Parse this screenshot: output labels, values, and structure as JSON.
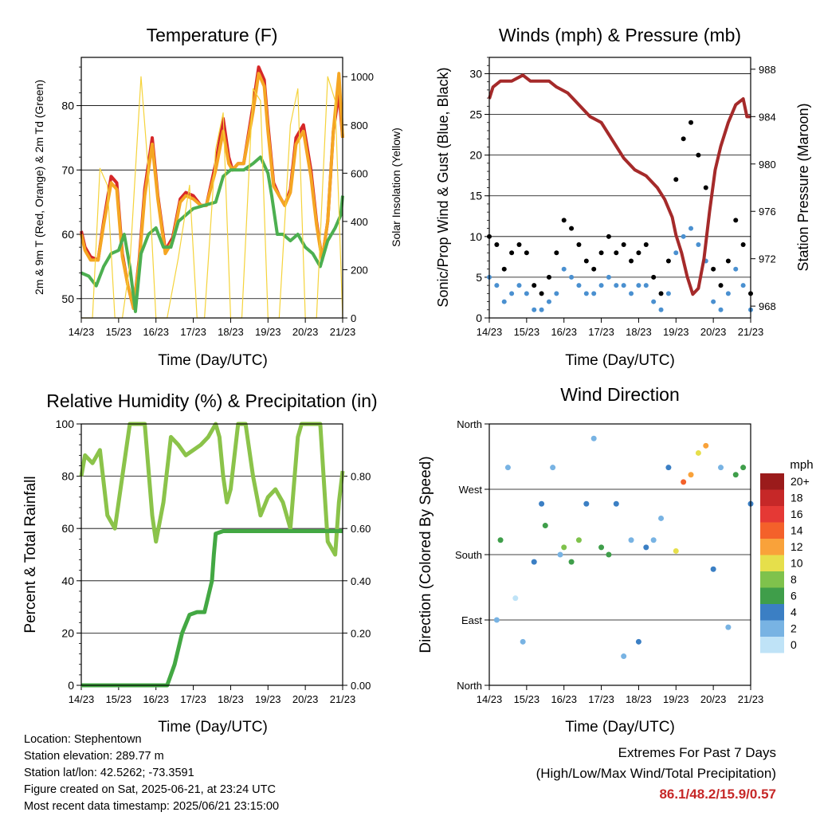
{
  "charts": [
    {
      "title": "Temperature (F)",
      "xlabel": "Time (Day/UTC)",
      "ylabel_left": "2m & 9m T (Red, Orange) & 2m Td (Green)",
      "ylabel_right": "Solar Insolation (Yellow)"
    },
    {
      "title": "Winds (mph) & Pressure (mb)",
      "xlabel": "Time (Day/UTC)",
      "ylabel_left": "Sonic/Prop Wind & Gust (Blue, Black)",
      "ylabel_right": "Station Pressure (Maroon)"
    },
    {
      "title": "Relative Humidity (%) & Precipitation (in)",
      "xlabel": "Time (Day/UTC)",
      "ylabel_left": "Percent & Total Rainfall"
    },
    {
      "title": "Wind Direction",
      "xlabel": "Time (Day/UTC)",
      "ylabel_left": "Direction (Colored By Speed)",
      "legend_title": "mph"
    }
  ],
  "chart_data": [
    {
      "type": "line",
      "x_ticks": [
        "14/23",
        "15/23",
        "16/23",
        "17/23",
        "18/23",
        "19/23",
        "20/23",
        "21/23"
      ],
      "ylim": [
        47,
        87.5
      ],
      "y_ticks": [
        50,
        60,
        70,
        80
      ],
      "y2lim": [
        0,
        1080
      ],
      "y2_ticks": [
        0,
        200,
        400,
        600,
        800,
        1000
      ],
      "series": [
        {
          "color": "#d62728",
          "x": [
            0,
            0.1,
            0.25,
            0.45,
            0.6,
            0.8,
            0.95,
            1.1,
            1.25,
            1.4,
            1.55,
            1.7,
            1.9,
            2.05,
            2.25,
            2.45,
            2.65,
            2.8,
            3.0,
            3.2,
            3.35,
            3.6,
            3.8,
            3.95,
            4.05,
            4.2,
            4.35,
            4.6,
            4.75,
            4.9,
            5.0,
            5.15,
            5.3,
            5.45,
            5.6,
            5.75,
            5.95,
            6.15,
            6.3,
            6.45,
            6.6,
            6.75,
            6.9,
            7.0
          ],
          "y": [
            60.5,
            58,
            56.5,
            56,
            62,
            69,
            68,
            57,
            52,
            48.5,
            56,
            67,
            75,
            66,
            57.5,
            59.5,
            65.5,
            66.5,
            66,
            64.5,
            64.5,
            71,
            78,
            72,
            70,
            71,
            71,
            80,
            86,
            84,
            77,
            68,
            66,
            64.5,
            67,
            75,
            77,
            70,
            62,
            56,
            62,
            76,
            82,
            75
          ]
        },
        {
          "color": "#f5a623",
          "x": [
            0,
            0.1,
            0.25,
            0.45,
            0.6,
            0.8,
            0.95,
            1.1,
            1.25,
            1.4,
            1.55,
            1.7,
            1.9,
            2.05,
            2.25,
            2.45,
            2.65,
            2.8,
            3.0,
            3.2,
            3.35,
            3.6,
            3.8,
            3.95,
            4.05,
            4.2,
            4.35,
            4.6,
            4.75,
            4.9,
            5.0,
            5.15,
            5.3,
            5.45,
            5.6,
            5.75,
            5.95,
            6.15,
            6.3,
            6.45,
            6.6,
            6.75,
            6.9,
            7.0
          ],
          "y": [
            60,
            57.5,
            56,
            56,
            61.5,
            68,
            67,
            56.5,
            52,
            48.5,
            55.5,
            66,
            74,
            65.5,
            57,
            59,
            65,
            66,
            65.5,
            64.5,
            64.5,
            70,
            76,
            71,
            70,
            71,
            71,
            79,
            85,
            83,
            76,
            67.5,
            66,
            64.5,
            66.5,
            74,
            76,
            69,
            61.5,
            56,
            62,
            76,
            85,
            75
          ]
        },
        {
          "color": "#4caf50",
          "x": [
            0,
            0.2,
            0.4,
            0.6,
            0.8,
            1.0,
            1.15,
            1.3,
            1.45,
            1.6,
            1.8,
            2.0,
            2.2,
            2.4,
            2.6,
            2.8,
            3.0,
            3.3,
            3.6,
            3.8,
            4.0,
            4.2,
            4.35,
            4.6,
            4.8,
            5.0,
            5.1,
            5.25,
            5.4,
            5.6,
            5.8,
            6.0,
            6.2,
            6.4,
            6.6,
            6.8,
            6.95,
            7.0
          ],
          "y": [
            54,
            53.5,
            52,
            55,
            57,
            57.5,
            60,
            55,
            48,
            57,
            60,
            61,
            58,
            58,
            62,
            63,
            64,
            64.5,
            65,
            69,
            70,
            70,
            70,
            71,
            72,
            69.5,
            66,
            60,
            60,
            59,
            60,
            58,
            57,
            55,
            59,
            61,
            63,
            66
          ]
        },
        {
          "color": "#f5d33b",
          "axis": "right",
          "x": [
            0,
            0.3,
            0.5,
            0.7,
            0.9,
            1.1,
            1.3,
            1.6,
            1.8,
            2.0,
            2.3,
            2.6,
            2.9,
            3.1,
            3.3,
            3.6,
            3.8,
            4.0,
            4.3,
            4.6,
            4.8,
            5.0,
            5.3,
            5.6,
            5.8,
            6.0,
            6.3,
            6.6,
            6.8,
            7.0
          ],
          "y": [
            0,
            0,
            620,
            550,
            0,
            0,
            220,
            1000,
            600,
            0,
            0,
            250,
            550,
            0,
            0,
            700,
            850,
            0,
            0,
            950,
            900,
            0,
            0,
            800,
            950,
            0,
            0,
            1000,
            900,
            0
          ]
        }
      ]
    },
    {
      "type": "scatter",
      "x_ticks": [
        "14/23",
        "15/23",
        "16/23",
        "17/23",
        "18/23",
        "19/23",
        "20/23",
        "21/23"
      ],
      "ylim": [
        0,
        32
      ],
      "y_ticks": [
        0,
        5,
        10,
        15,
        20,
        25,
        30
      ],
      "y2lim": [
        967,
        989
      ],
      "y2_ticks": [
        968,
        972,
        976,
        980,
        984,
        988
      ],
      "series": [
        {
          "color": "#000000",
          "x": [
            0,
            0.2,
            0.4,
            0.6,
            0.8,
            1.0,
            1.2,
            1.4,
            1.6,
            1.8,
            2.0,
            2.2,
            2.4,
            2.6,
            2.8,
            3.0,
            3.2,
            3.4,
            3.6,
            3.8,
            4.0,
            4.2,
            4.4,
            4.6,
            4.8,
            5.0,
            5.2,
            5.4,
            5.6,
            5.8,
            6.0,
            6.2,
            6.4,
            6.6,
            6.8,
            7.0
          ],
          "y": [
            10,
            9,
            6,
            8,
            9,
            8,
            4,
            3,
            5,
            8,
            12,
            11,
            9,
            7,
            6,
            8,
            10,
            8,
            9,
            7,
            8,
            9,
            5,
            3,
            7,
            17,
            22,
            24,
            20,
            16,
            6,
            4,
            7,
            12,
            9,
            3
          ]
        },
        {
          "color": "#4a90d0",
          "x": [
            0,
            0.2,
            0.4,
            0.6,
            0.8,
            1.0,
            1.2,
            1.4,
            1.6,
            1.8,
            2.0,
            2.2,
            2.4,
            2.6,
            2.8,
            3.0,
            3.2,
            3.4,
            3.6,
            3.8,
            4.0,
            4.2,
            4.4,
            4.6,
            4.8,
            5.0,
            5.2,
            5.4,
            5.6,
            5.8,
            6.0,
            6.2,
            6.4,
            6.6,
            6.8,
            7.0
          ],
          "y": [
            5,
            4,
            2,
            3,
            4,
            3,
            1,
            1,
            2,
            3,
            6,
            5,
            4,
            3,
            3,
            4,
            5,
            4,
            4,
            3,
            4,
            4,
            2,
            1,
            3,
            8,
            10,
            11,
            9,
            7,
            2,
            1,
            3,
            6,
            4,
            1
          ]
        },
        {
          "color": "#a52a2a",
          "axis": "right",
          "x": [
            0,
            0.1,
            0.3,
            0.6,
            0.9,
            1.1,
            1.3,
            1.6,
            1.8,
            2.1,
            2.4,
            2.7,
            3.0,
            3.3,
            3.6,
            3.9,
            4.2,
            4.5,
            4.7,
            4.9,
            5.0,
            5.15,
            5.3,
            5.45,
            5.6,
            5.75,
            5.9,
            6.05,
            6.2,
            6.4,
            6.6,
            6.8,
            6.9,
            7.0
          ],
          "y": [
            985.5,
            986.5,
            987,
            987,
            987.5,
            987,
            987,
            987,
            986.5,
            986,
            985,
            984,
            983.5,
            982,
            980.5,
            979.5,
            979,
            978,
            977,
            975.5,
            974,
            972.5,
            970.5,
            969,
            969.5,
            972,
            976,
            979.5,
            981.5,
            983.5,
            985,
            985.5,
            984,
            984
          ]
        }
      ]
    },
    {
      "type": "line",
      "x_ticks": [
        "14/23",
        "15/23",
        "16/23",
        "17/23",
        "18/23",
        "19/23",
        "20/23",
        "21/23"
      ],
      "ylim": [
        0,
        100
      ],
      "y_ticks": [
        0,
        20,
        40,
        60,
        80,
        100
      ],
      "y2lim": [
        0,
        1.0
      ],
      "y2_ticks": [
        "0.00",
        "0.20",
        "0.40",
        "0.60",
        "0.80"
      ],
      "series": [
        {
          "color": "#8bc34a",
          "x": [
            0,
            0.1,
            0.3,
            0.5,
            0.7,
            0.9,
            1.0,
            1.1,
            1.3,
            1.5,
            1.7,
            1.9,
            2.0,
            2.2,
            2.4,
            2.6,
            2.8,
            3.0,
            3.2,
            3.4,
            3.6,
            3.7,
            3.8,
            3.9,
            4.0,
            4.2,
            4.4,
            4.6,
            4.8,
            5.0,
            5.2,
            5.4,
            5.6,
            5.8,
            5.9,
            6.0,
            6.2,
            6.4,
            6.6,
            6.8,
            6.9,
            7.0
          ],
          "y": [
            80,
            88,
            85,
            90,
            65,
            60,
            70,
            80,
            100,
            100,
            100,
            65,
            55,
            70,
            95,
            92,
            88,
            90,
            92,
            95,
            100,
            95,
            80,
            70,
            75,
            100,
            100,
            80,
            65,
            72,
            75,
            70,
            60,
            95,
            100,
            100,
            100,
            100,
            55,
            50,
            70,
            82
          ]
        },
        {
          "color": "#43a843",
          "axis": "right",
          "x": [
            0,
            0.5,
            1.0,
            1.5,
            2.0,
            2.3,
            2.5,
            2.7,
            2.9,
            3.1,
            3.3,
            3.5,
            3.55,
            3.6,
            3.8,
            4.0,
            4.5,
            5.0,
            5.5,
            6.0,
            6.5,
            7.0
          ],
          "y": [
            0,
            0,
            0,
            0,
            0,
            0,
            0.08,
            0.2,
            0.27,
            0.28,
            0.28,
            0.4,
            0.5,
            0.58,
            0.59,
            0.59,
            0.59,
            0.59,
            0.59,
            0.59,
            0.59,
            0.59
          ]
        }
      ]
    },
    {
      "type": "scatter",
      "x_ticks": [
        "14/23",
        "15/23",
        "16/23",
        "17/23",
        "18/23",
        "19/23",
        "20/23",
        "21/23"
      ],
      "y_ticks": [
        "North",
        "East",
        "South",
        "West",
        "North"
      ],
      "ylim": [
        0,
        360
      ],
      "colorbar": {
        "labels": [
          "20+",
          "18",
          "16",
          "14",
          "12",
          "10",
          "8",
          "6",
          "4",
          "2",
          "0"
        ],
        "colors": [
          "#9b1b1b",
          "#c62828",
          "#e53935",
          "#f4612a",
          "#f9a23a",
          "#e6df4b",
          "#7fc24c",
          "#3f9e4a",
          "#3b7fc4",
          "#78b3e3",
          "#bfe3f7"
        ]
      },
      "series": [
        {
          "name": "",
          "x": [
            0.2,
            0.3,
            0.5,
            0.7,
            0.9,
            1.2,
            1.4,
            1.5,
            1.7,
            1.9,
            2.0,
            2.2,
            2.4,
            2.6,
            2.8,
            3.0,
            3.2,
            3.4,
            3.6,
            3.8,
            4.0,
            4.2,
            4.4,
            4.6,
            4.8,
            5.0,
            5.2,
            5.4,
            5.6,
            5.8,
            6.0,
            6.2,
            6.4,
            6.6,
            6.8,
            7.0
          ],
          "y": [
            90,
            200,
            300,
            120,
            60,
            170,
            250,
            220,
            300,
            180,
            190,
            170,
            200,
            250,
            340,
            190,
            180,
            250,
            40,
            200,
            60,
            190,
            200,
            230,
            300,
            185,
            280,
            290,
            320,
            330,
            160,
            300,
            80,
            290,
            300,
            250
          ],
          "speed": [
            2,
            5,
            1,
            0,
            2,
            3,
            4,
            6,
            1,
            2,
            7,
            6,
            8,
            4,
            2,
            5,
            6,
            3,
            1,
            2,
            4,
            3,
            1,
            2,
            4,
            10,
            14,
            12,
            10,
            11,
            3,
            1,
            2,
            5,
            6,
            3
          ]
        }
      ]
    }
  ],
  "info": {
    "location": "Location: Stephentown",
    "elevation": "Station elevation: 289.77 m",
    "latlon": "Station lat/lon: 42.5262; -73.3591",
    "created": "Figure created on Sat, 2025-06-21, at 23:24 UTC",
    "latest": "Most recent data timestamp: 2025/06/21 23:15:00"
  },
  "extremes": {
    "line1": "Extremes For Past 7 Days",
    "line2": "(High/Low/Max Wind/Total Precipitation)",
    "values": "86.1/48.2/15.9/0.57"
  }
}
